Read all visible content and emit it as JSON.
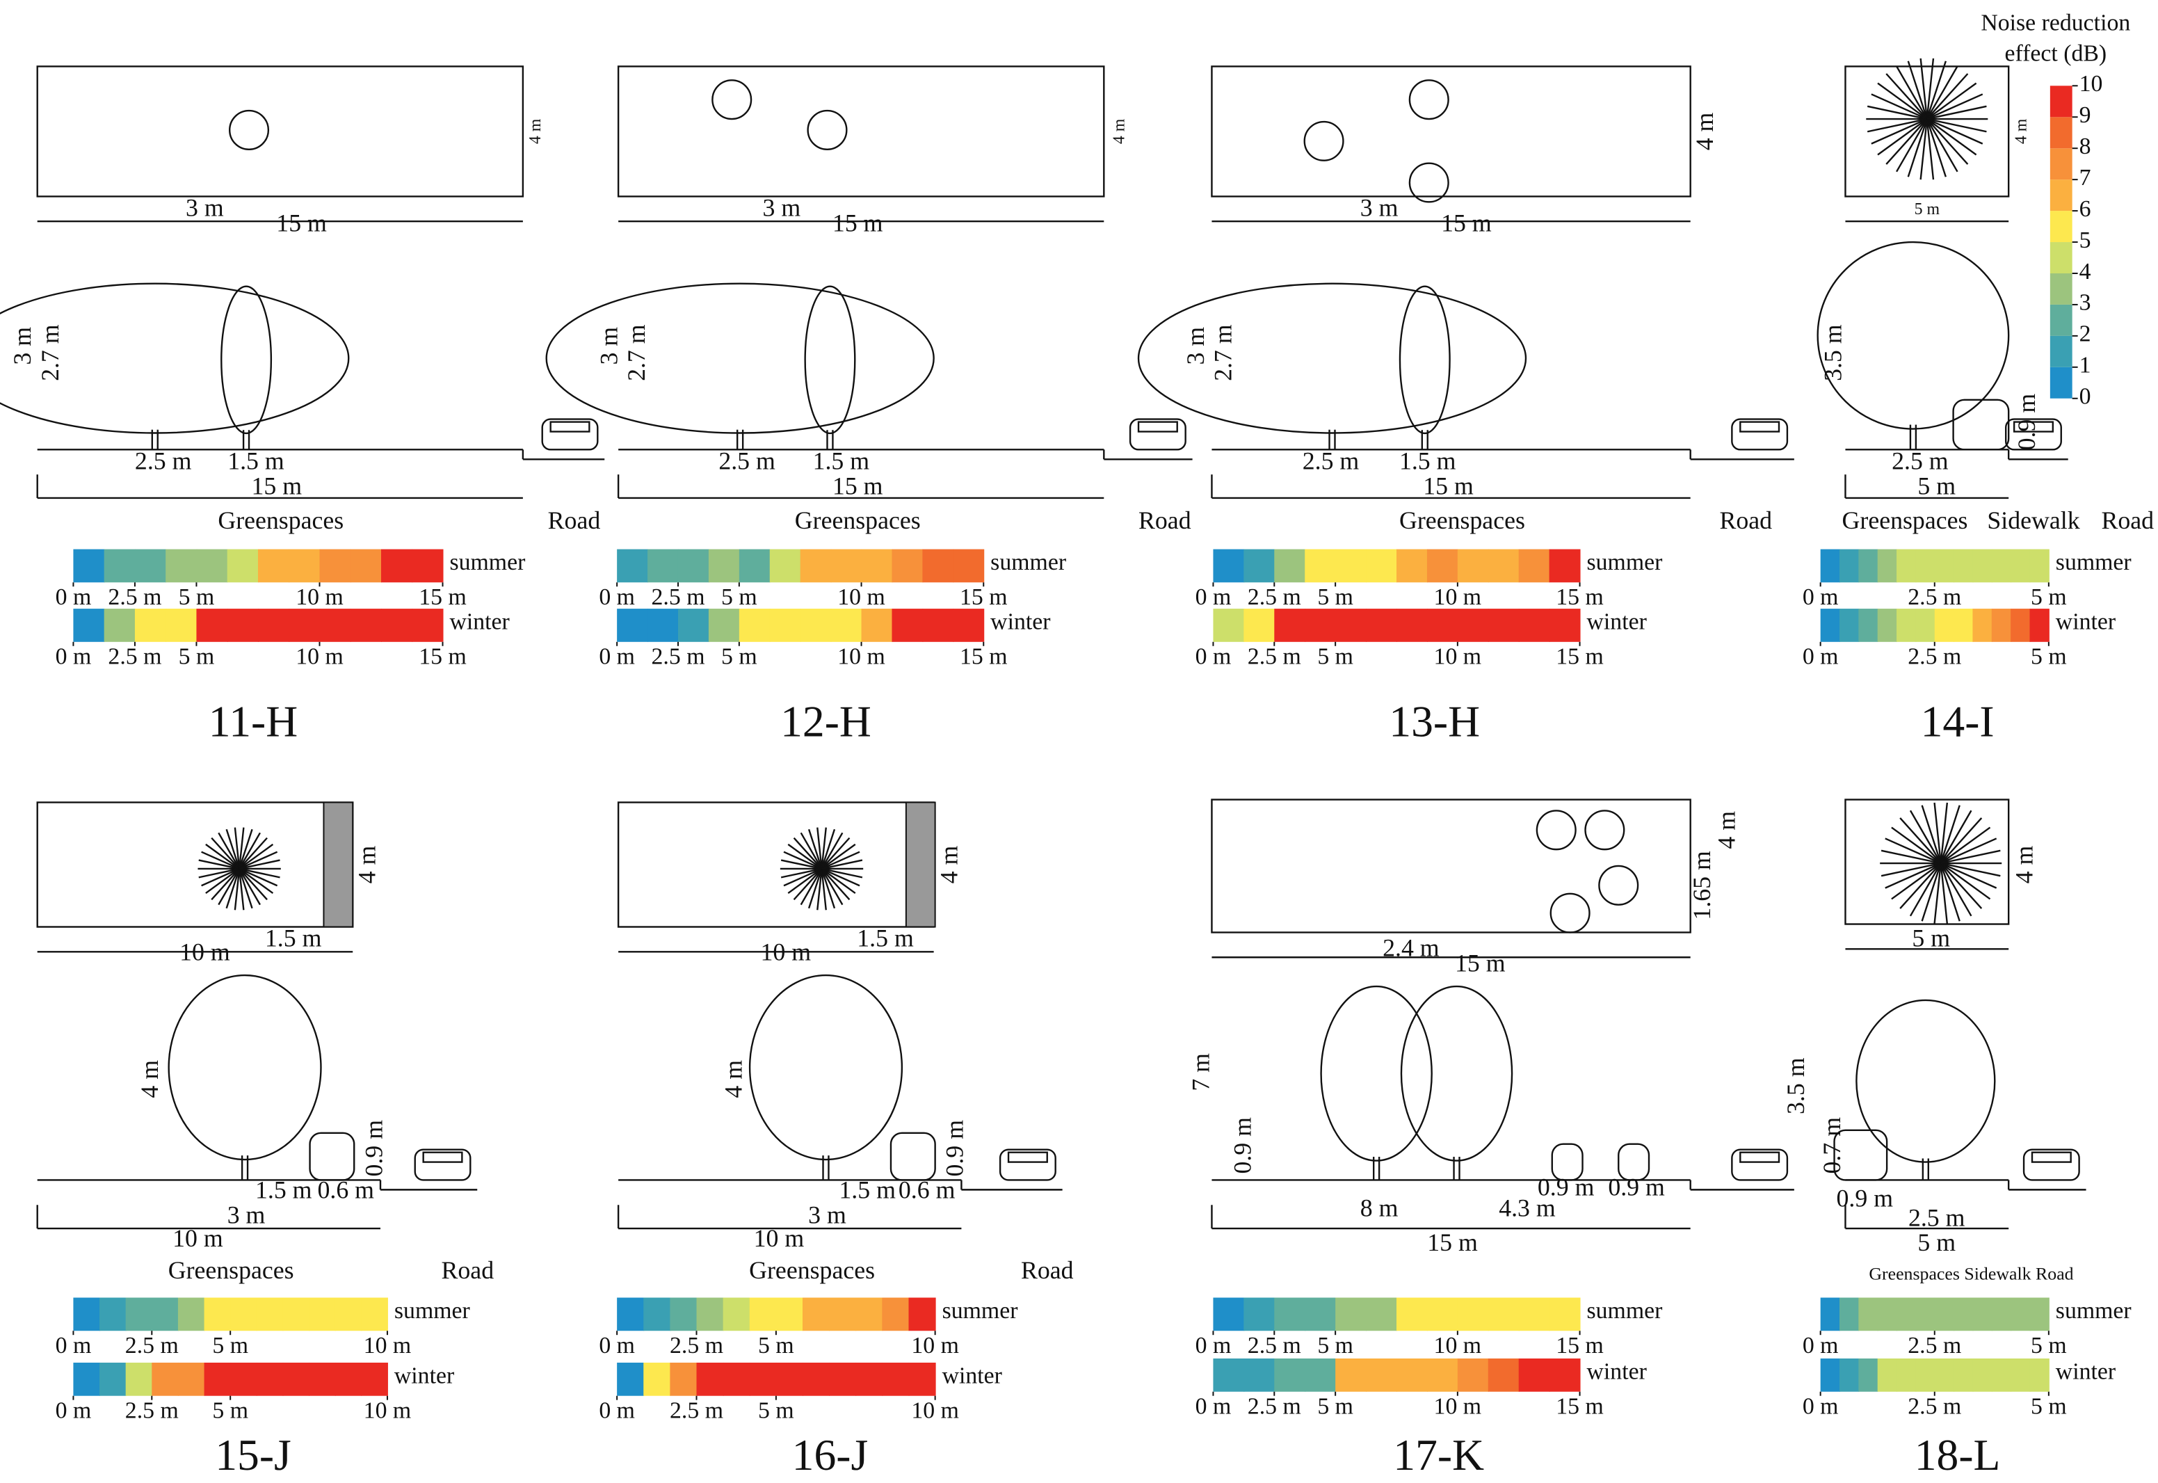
{
  "legend": {
    "title": [
      "Noise reduction",
      "effect (dB)"
    ],
    "ticks": [
      0,
      1,
      2,
      3,
      4,
      5,
      6,
      7,
      8,
      9,
      10
    ],
    "colors": [
      "#1f8fc9",
      "#3aa0b3",
      "#5fae9c",
      "#9cc47e",
      "#cddf6a",
      "#fde84f",
      "#fbb040",
      "#f7913a",
      "#f26b2d",
      "#ea2a22"
    ]
  },
  "panels": [
    {
      "id": "11-H",
      "plan_labels": [
        "4 m",
        "3 m",
        "15 m"
      ],
      "section_labels": [
        "3 m",
        "2.7 m",
        "2.5 m",
        "1.5 m",
        "15 m"
      ],
      "zone_labels": [
        "Greenspaces",
        "Road"
      ],
      "seasons": [
        {
          "name": "summer",
          "xlim": [
            0,
            15
          ],
          "ticks": [
            {
              "value": 0,
              "label": "0 m"
            },
            {
              "value": 2.5,
              "label": "2.5 m"
            },
            {
              "value": 5,
              "label": "5 m"
            },
            {
              "value": 10,
              "label": "10 m"
            },
            {
              "value": 15,
              "label": "15 m"
            }
          ],
          "values": [
            0,
            2,
            2,
            3,
            3,
            4,
            6,
            6,
            7,
            7,
            9,
            9
          ]
        },
        {
          "name": "winter",
          "xlim": [
            0,
            15
          ],
          "ticks": [
            {
              "value": 0,
              "label": "0 m"
            },
            {
              "value": 2.5,
              "label": "2.5 m"
            },
            {
              "value": 5,
              "label": "5 m"
            },
            {
              "value": 10,
              "label": "10 m"
            },
            {
              "value": 15,
              "label": "15 m"
            }
          ],
          "values": [
            0,
            3,
            5,
            5,
            9,
            9,
            9,
            9,
            9,
            9,
            9,
            9
          ]
        }
      ]
    },
    {
      "id": "12-H",
      "plan_labels": [
        "4 m",
        "3 m",
        "15 m"
      ],
      "section_labels": [
        "3 m",
        "2.7 m",
        "2.5 m",
        "1.5 m",
        "15 m"
      ],
      "zone_labels": [
        "Greenspaces",
        "Road"
      ],
      "seasons": [
        {
          "name": "summer",
          "xlim": [
            0,
            15
          ],
          "ticks": [
            {
              "value": 0,
              "label": "0 m"
            },
            {
              "value": 2.5,
              "label": "2.5 m"
            },
            {
              "value": 5,
              "label": "5 m"
            },
            {
              "value": 10,
              "label": "10 m"
            },
            {
              "value": 15,
              "label": "15 m"
            }
          ],
          "values": [
            1,
            2,
            2,
            3,
            2,
            4,
            6,
            6,
            6,
            7,
            8,
            8
          ]
        },
        {
          "name": "winter",
          "xlim": [
            0,
            15
          ],
          "ticks": [
            {
              "value": 0,
              "label": "0 m"
            },
            {
              "value": 2.5,
              "label": "2.5 m"
            },
            {
              "value": 5,
              "label": "5 m"
            },
            {
              "value": 10,
              "label": "10 m"
            },
            {
              "value": 15,
              "label": "15 m"
            }
          ],
          "values": [
            0,
            0,
            1,
            3,
            5,
            5,
            5,
            5,
            6,
            9,
            9,
            9
          ]
        }
      ]
    },
    {
      "id": "13-H",
      "plan_labels": [
        "4 m",
        "3 m",
        "15 m"
      ],
      "section_labels": [
        "3 m",
        "2.7 m",
        "2.5 m",
        "1.5 m",
        "15 m"
      ],
      "zone_labels": [
        "Greenspaces",
        "Road"
      ],
      "seasons": [
        {
          "name": "summer",
          "xlim": [
            0,
            15
          ],
          "ticks": [
            {
              "value": 0,
              "label": "0 m"
            },
            {
              "value": 2.5,
              "label": "2.5 m"
            },
            {
              "value": 5,
              "label": "5 m"
            },
            {
              "value": 10,
              "label": "10 m"
            },
            {
              "value": 15,
              "label": "15 m"
            }
          ],
          "values": [
            0,
            1,
            3,
            5,
            5,
            5,
            6,
            7,
            6,
            6,
            7,
            9
          ]
        },
        {
          "name": "winter",
          "xlim": [
            0,
            15
          ],
          "ticks": [
            {
              "value": 0,
              "label": "0 m"
            },
            {
              "value": 2.5,
              "label": "2.5 m"
            },
            {
              "value": 5,
              "label": "5 m"
            },
            {
              "value": 10,
              "label": "10 m"
            },
            {
              "value": 15,
              "label": "15 m"
            }
          ],
          "values": [
            4,
            5,
            9,
            9,
            9,
            9,
            9,
            9,
            9,
            9,
            9,
            9
          ]
        }
      ]
    },
    {
      "id": "14-I",
      "plan_labels": [
        "4 m",
        "5 m"
      ],
      "section_labels": [
        "3.5 m",
        "2.5 m",
        "0.9 m",
        "5 m"
      ],
      "zone_labels": [
        "Greenspaces",
        "Sidewalk",
        "Road"
      ],
      "seasons": [
        {
          "name": "summer",
          "xlim": [
            0,
            5
          ],
          "ticks": [
            {
              "value": 0,
              "label": "0 m"
            },
            {
              "value": 2.5,
              "label": "2.5 m"
            },
            {
              "value": 5,
              "label": "5 m"
            }
          ],
          "values": [
            0,
            1,
            2,
            3,
            4,
            4,
            4,
            4,
            4,
            4,
            4,
            4
          ]
        },
        {
          "name": "winter",
          "xlim": [
            0,
            5
          ],
          "ticks": [
            {
              "value": 0,
              "label": "0 m"
            },
            {
              "value": 2.5,
              "label": "2.5 m"
            },
            {
              "value": 5,
              "label": "5 m"
            }
          ],
          "values": [
            0,
            1,
            2,
            3,
            4,
            4,
            5,
            5,
            6,
            7,
            8,
            9
          ]
        }
      ]
    },
    {
      "id": "15-J",
      "plan_labels": [
        "4 m",
        "1.5 m",
        "10 m"
      ],
      "section_labels": [
        "4 m",
        "0.9 m",
        "1.5 m",
        "0.6 m",
        "3 m",
        "10 m"
      ],
      "zone_labels": [
        "Greenspaces",
        "Road"
      ],
      "seasons": [
        {
          "name": "summer",
          "xlim": [
            0,
            10
          ],
          "ticks": [
            {
              "value": 0,
              "label": "0 m"
            },
            {
              "value": 2.5,
              "label": "2.5 m"
            },
            {
              "value": 5,
              "label": "5 m"
            },
            {
              "value": 10,
              "label": "10 m"
            }
          ],
          "values": [
            0,
            1,
            2,
            2,
            3,
            5,
            5,
            5,
            5,
            5,
            5,
            5
          ]
        },
        {
          "name": "winter",
          "xlim": [
            0,
            10
          ],
          "ticks": [
            {
              "value": 0,
              "label": "0 m"
            },
            {
              "value": 2.5,
              "label": "2.5 m"
            },
            {
              "value": 5,
              "label": "5 m"
            },
            {
              "value": 10,
              "label": "10 m"
            }
          ],
          "values": [
            0,
            1,
            4,
            7,
            7,
            9,
            9,
            9,
            9,
            9,
            9,
            9
          ]
        }
      ]
    },
    {
      "id": "16-J",
      "plan_labels": [
        "4 m",
        "1.5 m",
        "10 m"
      ],
      "section_labels": [
        "4 m",
        "0.9 m",
        "1.5 m",
        "0.6 m",
        "3 m",
        "10 m"
      ],
      "zone_labels": [
        "Greenspaces",
        "Road"
      ],
      "seasons": [
        {
          "name": "summer",
          "xlim": [
            0,
            10
          ],
          "ticks": [
            {
              "value": 0,
              "label": "0 m"
            },
            {
              "value": 2.5,
              "label": "2.5 m"
            },
            {
              "value": 5,
              "label": "5 m"
            },
            {
              "value": 10,
              "label": "10 m"
            }
          ],
          "values": [
            0,
            1,
            2,
            3,
            4,
            5,
            5,
            6,
            6,
            6,
            7,
            9
          ]
        },
        {
          "name": "winter",
          "xlim": [
            0,
            10
          ],
          "ticks": [
            {
              "value": 0,
              "label": "0 m"
            },
            {
              "value": 2.5,
              "label": "2.5 m"
            },
            {
              "value": 5,
              "label": "5 m"
            },
            {
              "value": 10,
              "label": "10 m"
            }
          ],
          "values": [
            0,
            5,
            7,
            9,
            9,
            9,
            9,
            9,
            9,
            9,
            9,
            9
          ]
        }
      ]
    },
    {
      "id": "17-K",
      "plan_labels": [
        "4 m",
        "1.65 m",
        "2.4 m",
        "15 m"
      ],
      "section_labels": [
        "7 m",
        "0.9 m",
        "8 m",
        "4.3 m",
        "0.9 m",
        "0.9 m",
        "15 m"
      ],
      "zone_labels": [],
      "seasons": [
        {
          "name": "summer",
          "xlim": [
            0,
            15
          ],
          "ticks": [
            {
              "value": 0,
              "label": "0 m"
            },
            {
              "value": 2.5,
              "label": "2.5 m"
            },
            {
              "value": 5,
              "label": "5 m"
            },
            {
              "value": 10,
              "label": "10 m"
            },
            {
              "value": 15,
              "label": "15 m"
            }
          ],
          "values": [
            0,
            1,
            2,
            2,
            3,
            3,
            5,
            5,
            5,
            5,
            5,
            5
          ]
        },
        {
          "name": "winter",
          "xlim": [
            0,
            15
          ],
          "ticks": [
            {
              "value": 0,
              "label": "0 m"
            },
            {
              "value": 2.5,
              "label": "2.5 m"
            },
            {
              "value": 5,
              "label": "5 m"
            },
            {
              "value": 10,
              "label": "10 m"
            },
            {
              "value": 15,
              "label": "15 m"
            }
          ],
          "values": [
            1,
            1,
            2,
            2,
            6,
            6,
            6,
            6,
            7,
            8,
            9,
            9
          ]
        }
      ]
    },
    {
      "id": "18-L",
      "plan_labels": [
        "4 m",
        "5 m"
      ],
      "section_labels": [
        "3.5 m",
        "0.7 m",
        "0.9 m",
        "2.5 m",
        "5 m"
      ],
      "zone_labels": [
        "Greenspaces Sidewalk Road"
      ],
      "seasons": [
        {
          "name": "summer",
          "xlim": [
            0,
            5
          ],
          "ticks": [
            {
              "value": 0,
              "label": "0 m"
            },
            {
              "value": 2.5,
              "label": "2.5 m"
            },
            {
              "value": 5,
              "label": "5 m"
            }
          ],
          "values": [
            0,
            2,
            3,
            3,
            3,
            3,
            3,
            3,
            3,
            3,
            3,
            3
          ]
        },
        {
          "name": "winter",
          "xlim": [
            0,
            5
          ],
          "ticks": [
            {
              "value": 0,
              "label": "0 m"
            },
            {
              "value": 2.5,
              "label": "2.5 m"
            },
            {
              "value": 5,
              "label": "5 m"
            }
          ],
          "values": [
            0,
            1,
            2,
            4,
            4,
            4,
            4,
            4,
            4,
            4,
            4,
            4
          ]
        }
      ]
    }
  ]
}
